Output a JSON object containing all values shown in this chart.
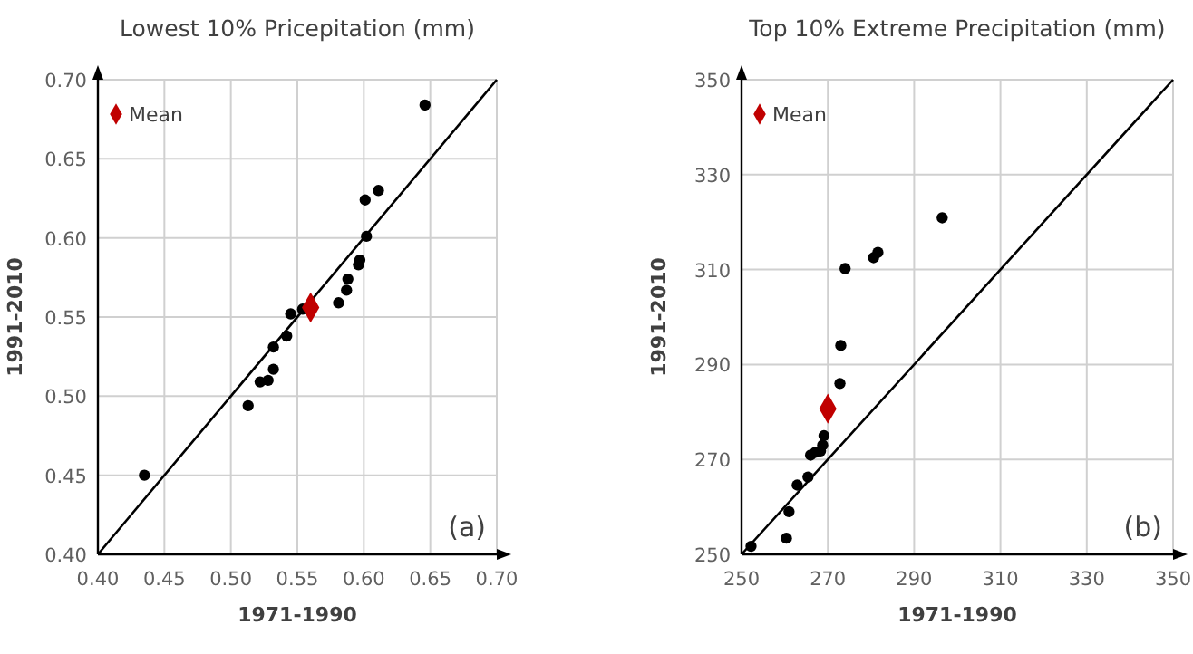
{
  "chart_data": [
    {
      "type": "scatter",
      "title": "Lowest 10%  Pricepitation (mm)",
      "xlabel": "1971-1990",
      "ylabel": "1991-2010",
      "xlim": [
        0.4,
        0.7
      ],
      "ylim": [
        0.4,
        0.7
      ],
      "xticks": [
        {
          "value": 0.4,
          "label": "0.40"
        },
        0.45,
        {
          "value": 0.5,
          "label": "0.50"
        },
        0.55,
        {
          "value": 0.6,
          "label": "0.60"
        },
        0.65,
        {
          "value": 0.7,
          "label": "0.70"
        }
      ],
      "yticks": [
        {
          "value": 0.4,
          "label": "0.40"
        },
        0.45,
        {
          "value": 0.5,
          "label": "0.50"
        },
        0.55,
        {
          "value": 0.6,
          "label": "0.60"
        },
        0.65,
        {
          "value": 0.7,
          "label": "0.70"
        }
      ],
      "grid": true,
      "legend": "top left",
      "annotations": [
        "(a)"
      ],
      "series": [
        {
          "type": "line",
          "color": "#000000",
          "marker": "none",
          "line_style": "solid",
          "x": [
            0.4,
            0.7
          ],
          "values": [
            0.4,
            0.7
          ]
        },
        {
          "color": "#000000",
          "marker": "circle",
          "x": [
            0.435,
            0.513,
            0.522,
            0.528,
            0.532,
            0.532,
            0.542,
            0.545,
            0.554,
            0.581,
            0.587,
            0.588,
            0.596,
            0.597,
            0.602,
            0.601,
            0.611,
            0.646
          ],
          "values": [
            0.45,
            0.494,
            0.509,
            0.51,
            0.517,
            0.531,
            0.538,
            0.552,
            0.555,
            0.559,
            0.567,
            0.574,
            0.583,
            0.586,
            0.601,
            0.624,
            0.63,
            0.684
          ]
        },
        {
          "name": "Mean",
          "color": "#c00000",
          "marker": "diamond",
          "x": [
            0.56
          ],
          "values": [
            0.556
          ]
        }
      ]
    },
    {
      "type": "scatter",
      "title": "Top 10% Extreme Precipitation (mm)",
      "xlabel": "1971-1990",
      "ylabel": "1991-2010",
      "xlim": [
        250,
        350
      ],
      "ylim": [
        250,
        350
      ],
      "xticks": [
        250,
        270,
        290,
        310,
        330,
        350
      ],
      "yticks": [
        250,
        270,
        290,
        310,
        330,
        350
      ],
      "grid": true,
      "legend": "top left",
      "annotations": [
        "(b)"
      ],
      "series": [
        {
          "type": "line",
          "color": "#000000",
          "marker": "none",
          "line_style": "solid",
          "x": [
            250,
            350
          ],
          "values": [
            250,
            350
          ]
        },
        {
          "color": "#000000",
          "marker": "circle",
          "x": [
            252.2,
            260.4,
            261,
            262.9,
            265.4,
            266,
            267.1,
            268.3,
            268.8,
            269.1,
            272.8,
            273,
            274,
            280.6,
            281.6,
            296.5
          ],
          "values": [
            251.7,
            253.4,
            259,
            264.6,
            266.3,
            270.9,
            271.5,
            271.8,
            273,
            275,
            286,
            294,
            310.2,
            312.5,
            313.6,
            320.9
          ]
        },
        {
          "name": "Mean",
          "color": "#c00000",
          "marker": "diamond",
          "x": [
            270
          ],
          "values": [
            280.7
          ]
        }
      ]
    }
  ]
}
